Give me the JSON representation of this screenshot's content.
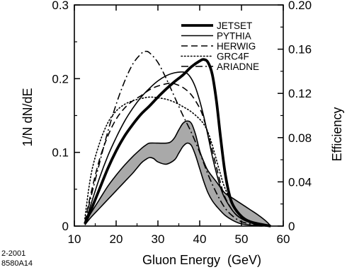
{
  "chart_data": {
    "type": "line",
    "xlabel": "Gluon Energy  (GeV)",
    "ylabel": "1/N dN/dE",
    "y2label": "Efficiency",
    "xlim": [
      10,
      60
    ],
    "ylim": [
      0,
      0.3
    ],
    "y2lim": [
      0,
      0.2
    ],
    "x_ticks": [
      "10",
      "20",
      "30",
      "40",
      "50",
      "60"
    ],
    "y_ticks": [
      "0",
      "0.1",
      "0.2",
      "0.3"
    ],
    "y2_ticks": [
      "0",
      "0.04",
      "0.08",
      "0.12",
      "0.16",
      "0.20"
    ],
    "grid": false,
    "legend_position": "top-right",
    "series": [
      {
        "name": "JETSET",
        "style": "thick-solid",
        "points": [
          [
            12.5,
            0.003
          ],
          [
            14,
            0.022
          ],
          [
            16,
            0.05
          ],
          [
            18,
            0.078
          ],
          [
            20,
            0.102
          ],
          [
            22,
            0.122
          ],
          [
            24,
            0.138
          ],
          [
            26,
            0.152
          ],
          [
            28,
            0.163
          ],
          [
            30,
            0.175
          ],
          [
            32,
            0.186
          ],
          [
            34,
            0.196
          ],
          [
            36,
            0.205
          ],
          [
            38,
            0.216
          ],
          [
            40,
            0.224
          ],
          [
            41,
            0.226
          ],
          [
            42,
            0.222
          ],
          [
            43,
            0.206
          ],
          [
            44,
            0.17
          ],
          [
            45,
            0.12
          ],
          [
            46,
            0.075
          ],
          [
            47,
            0.045
          ],
          [
            48,
            0.028
          ],
          [
            50,
            0.013
          ],
          [
            52,
            0.006
          ],
          [
            55,
            0.002
          ],
          [
            57,
            0
          ]
        ]
      },
      {
        "name": "PYTHIA",
        "style": "solid",
        "points": [
          [
            12.5,
            0.003
          ],
          [
            14,
            0.03
          ],
          [
            16,
            0.065
          ],
          [
            18,
            0.095
          ],
          [
            20,
            0.12
          ],
          [
            22,
            0.142
          ],
          [
            24,
            0.16
          ],
          [
            26,
            0.175
          ],
          [
            28,
            0.187
          ],
          [
            30,
            0.197
          ],
          [
            32,
            0.204
          ],
          [
            34,
            0.208
          ],
          [
            36,
            0.209
          ],
          [
            37,
            0.207
          ],
          [
            38,
            0.2
          ],
          [
            39,
            0.188
          ],
          [
            40,
            0.17
          ],
          [
            41,
            0.148
          ],
          [
            42,
            0.122
          ],
          [
            43,
            0.095
          ],
          [
            44,
            0.072
          ],
          [
            45,
            0.052
          ],
          [
            46,
            0.038
          ],
          [
            48,
            0.02
          ],
          [
            50,
            0.01
          ],
          [
            53,
            0.003
          ],
          [
            56,
            0
          ]
        ]
      },
      {
        "name": "HERWIG",
        "style": "dashed",
        "points": [
          [
            12.5,
            0.005
          ],
          [
            14,
            0.045
          ],
          [
            16,
            0.09
          ],
          [
            18,
            0.122
          ],
          [
            20,
            0.145
          ],
          [
            22,
            0.16
          ],
          [
            24,
            0.17
          ],
          [
            26,
            0.177
          ],
          [
            28,
            0.185
          ],
          [
            30,
            0.19
          ],
          [
            32,
            0.193
          ],
          [
            33,
            0.194
          ],
          [
            34,
            0.193
          ],
          [
            36,
            0.188
          ],
          [
            38,
            0.178
          ],
          [
            40,
            0.16
          ],
          [
            41,
            0.145
          ],
          [
            42,
            0.125
          ],
          [
            43,
            0.103
          ],
          [
            44,
            0.08
          ],
          [
            45,
            0.058
          ],
          [
            46,
            0.04
          ],
          [
            48,
            0.02
          ],
          [
            50,
            0.01
          ],
          [
            53,
            0.003
          ],
          [
            56,
            0
          ]
        ]
      },
      {
        "name": "GRC4F",
        "style": "dotted",
        "points": [
          [
            12.5,
            0.01
          ],
          [
            14,
            0.07
          ],
          [
            16,
            0.112
          ],
          [
            18,
            0.14
          ],
          [
            20,
            0.156
          ],
          [
            22,
            0.165
          ],
          [
            24,
            0.17
          ],
          [
            26,
            0.173
          ],
          [
            28,
            0.175
          ],
          [
            30,
            0.174
          ],
          [
            32,
            0.172
          ],
          [
            34,
            0.168
          ],
          [
            36,
            0.162
          ],
          [
            38,
            0.155
          ],
          [
            40,
            0.145
          ],
          [
            41,
            0.138
          ],
          [
            42,
            0.127
          ],
          [
            43,
            0.11
          ],
          [
            44,
            0.09
          ],
          [
            45,
            0.07
          ],
          [
            46,
            0.052
          ],
          [
            48,
            0.028
          ],
          [
            50,
            0.014
          ],
          [
            53,
            0.004
          ],
          [
            56,
            0
          ]
        ]
      },
      {
        "name": "ARIADNE",
        "style": "dash-dot",
        "points": [
          [
            12.5,
            0.005
          ],
          [
            14,
            0.04
          ],
          [
            16,
            0.085
          ],
          [
            18,
            0.128
          ],
          [
            20,
            0.165
          ],
          [
            22,
            0.196
          ],
          [
            24,
            0.22
          ],
          [
            26,
            0.234
          ],
          [
            27,
            0.237
          ],
          [
            28,
            0.235
          ],
          [
            30,
            0.222
          ],
          [
            32,
            0.2
          ],
          [
            34,
            0.175
          ],
          [
            36,
            0.15
          ],
          [
            38,
            0.127
          ],
          [
            40,
            0.1
          ],
          [
            42,
            0.07
          ],
          [
            44,
            0.045
          ],
          [
            46,
            0.025
          ],
          [
            48,
            0.013
          ],
          [
            50,
            0.006
          ],
          [
            53,
            0.002
          ],
          [
            56,
            0
          ]
        ]
      }
    ],
    "efficiency_band": {
      "axis": "right",
      "upper": [
        [
          12.5,
          0.003
        ],
        [
          14,
          0.012
        ],
        [
          16,
          0.024
        ],
        [
          18,
          0.036
        ],
        [
          20,
          0.046
        ],
        [
          22,
          0.055
        ],
        [
          24,
          0.063
        ],
        [
          26,
          0.07
        ],
        [
          27,
          0.073
        ],
        [
          28,
          0.075
        ],
        [
          30,
          0.075
        ],
        [
          32,
          0.075
        ],
        [
          33,
          0.076
        ],
        [
          34,
          0.08
        ],
        [
          35,
          0.087
        ],
        [
          36,
          0.093
        ],
        [
          37,
          0.095
        ],
        [
          38,
          0.093
        ],
        [
          39,
          0.083
        ],
        [
          40,
          0.068
        ],
        [
          41,
          0.058
        ],
        [
          42,
          0.05
        ],
        [
          44,
          0.04
        ],
        [
          46,
          0.03
        ],
        [
          48,
          0.025
        ],
        [
          50,
          0.02
        ],
        [
          52,
          0.015
        ],
        [
          54,
          0.01
        ],
        [
          56,
          0.004
        ],
        [
          57,
          0
        ]
      ],
      "lower": [
        [
          12.5,
          0.001
        ],
        [
          14,
          0.008
        ],
        [
          16,
          0.016
        ],
        [
          18,
          0.024
        ],
        [
          20,
          0.032
        ],
        [
          22,
          0.04
        ],
        [
          24,
          0.048
        ],
        [
          26,
          0.057
        ],
        [
          27,
          0.06
        ],
        [
          28,
          0.062
        ],
        [
          29,
          0.061
        ],
        [
          30,
          0.058
        ],
        [
          32,
          0.056
        ],
        [
          34,
          0.06
        ],
        [
          35,
          0.066
        ],
        [
          36,
          0.072
        ],
        [
          37,
          0.075
        ],
        [
          38,
          0.073
        ],
        [
          39,
          0.064
        ],
        [
          40,
          0.052
        ],
        [
          41,
          0.04
        ],
        [
          42,
          0.03
        ],
        [
          43,
          0.023
        ],
        [
          44,
          0.018
        ],
        [
          46,
          0.01
        ],
        [
          48,
          0.005
        ],
        [
          50,
          0.002
        ],
        [
          53,
          0.0005
        ],
        [
          55,
          0
        ]
      ]
    }
  },
  "corner_note": [
    "2-2001",
    "8580A14"
  ]
}
